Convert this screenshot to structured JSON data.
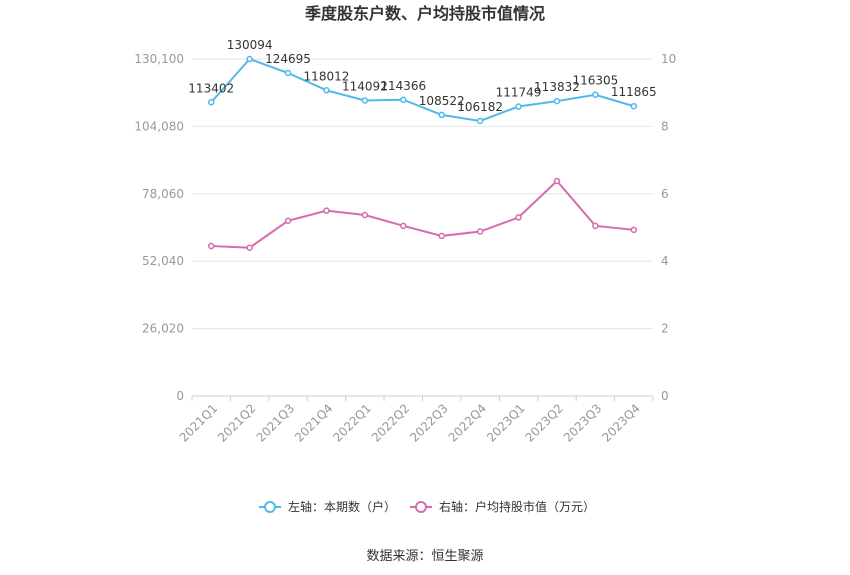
{
  "chart_data": {
    "type": "line",
    "title": "季度股东户数、户均持股市值情况",
    "categories": [
      "2021Q1",
      "2021Q2",
      "2021Q3",
      "2021Q4",
      "2022Q1",
      "2022Q2",
      "2022Q3",
      "2022Q4",
      "2023Q1",
      "2023Q2",
      "2023Q3",
      "2023Q4"
    ],
    "left_axis": {
      "ticks": [
        "0",
        "26,020",
        "52,040",
        "78,060",
        "104,080",
        "130,100"
      ],
      "min": 0,
      "max": 130100
    },
    "right_axis": {
      "ticks": [
        "0",
        "2",
        "4",
        "6",
        "8",
        "10"
      ],
      "min": 0,
      "max": 10
    },
    "series": [
      {
        "name": "左轴：本期数（户）",
        "axis": "left",
        "color": "#4fb9e8",
        "values": [
          113402,
          130094,
          124695,
          118012,
          114092,
          114366,
          108522,
          106182,
          111749,
          113832,
          116305,
          111865
        ],
        "labels": [
          "113402",
          "130094",
          "124695",
          "118012",
          "114092",
          "114366",
          "108522",
          "106182",
          "111749",
          "113832",
          "116305",
          "111865"
        ]
      },
      {
        "name": "右轴：户均持股市值（万元）",
        "axis": "right",
        "color": "#d66bb0",
        "values": [
          4.45,
          4.4,
          5.2,
          5.5,
          5.37,
          5.05,
          4.75,
          4.88,
          5.3,
          6.38,
          5.05,
          4.93
        ]
      }
    ],
    "grid": true,
    "legend_position": "bottom"
  },
  "source_text": "数据来源：恒生聚源"
}
